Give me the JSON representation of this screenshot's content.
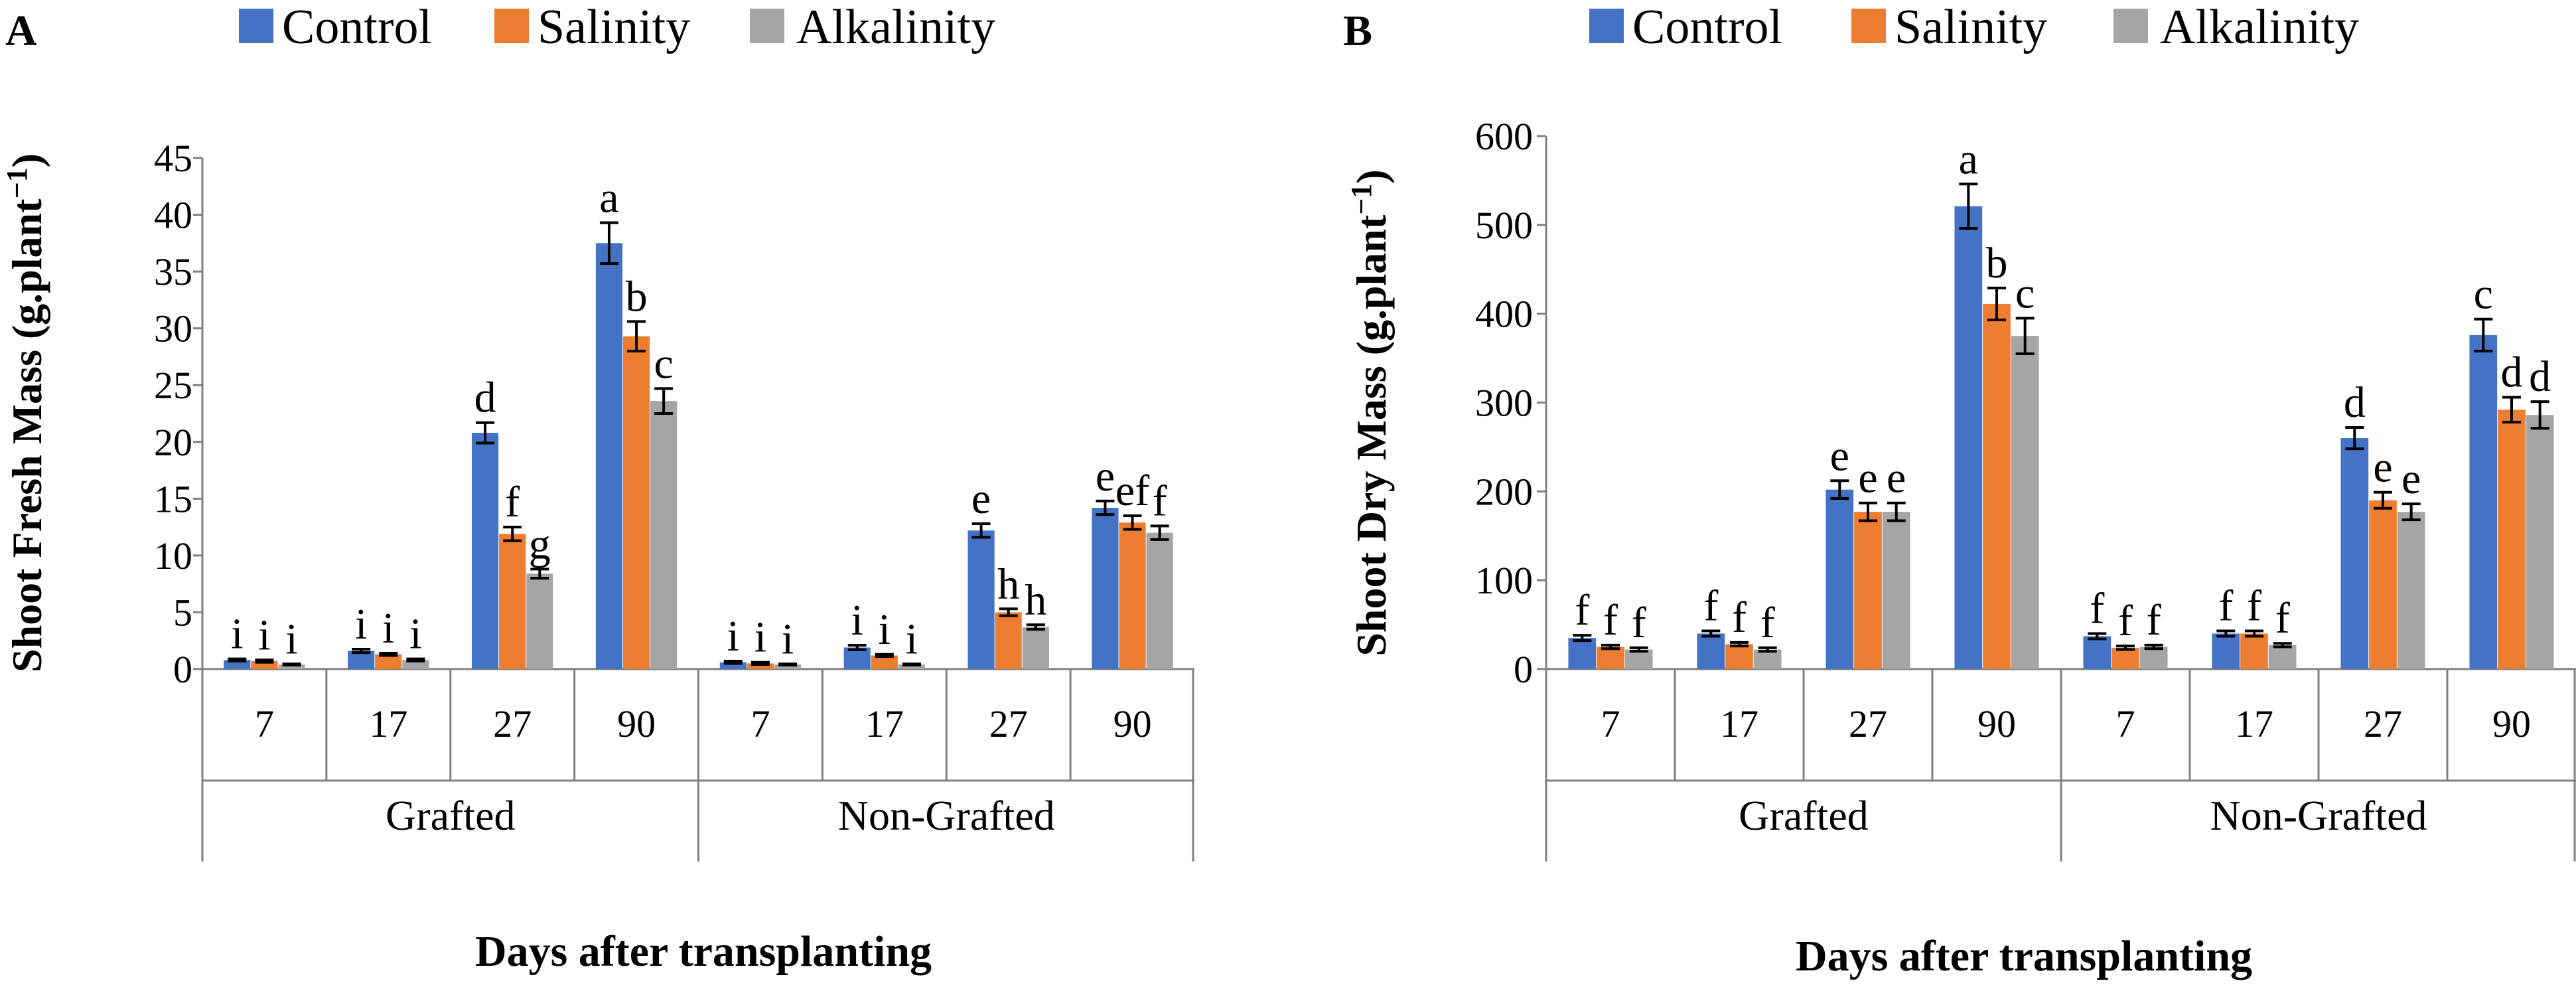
{
  "chart_data": [
    {
      "type": "bar",
      "panel_label": "A",
      "ylabel": "Shoot Fresh  Mass (g.plant",
      "ylabel_exp": "−1",
      "ylabel_close": ")",
      "xlabel": "Days after transplanting",
      "ylim": [
        0,
        45
      ],
      "yticks": [
        0,
        5,
        10,
        15,
        20,
        25,
        30,
        35,
        40,
        45
      ],
      "groups": [
        {
          "name": "Grafted",
          "categories": [
            "7",
            "17",
            "27",
            "90"
          ]
        },
        {
          "name": "Non-Grafted",
          "categories": [
            "7",
            "17",
            "27",
            "90"
          ]
        }
      ],
      "series": [
        {
          "name": "Control",
          "color": "#4472C4",
          "values": [
            0.8,
            1.6,
            20.8,
            37.5,
            0.6,
            1.9,
            12.2,
            14.2
          ],
          "errors": [
            0.1,
            0.15,
            0.9,
            1.8,
            0.1,
            0.2,
            0.6,
            0.6
          ],
          "letters": [
            "i",
            "i",
            "d",
            "a",
            "i",
            "i",
            "e",
            "e"
          ]
        },
        {
          "name": "Salinity",
          "color": "#ED7D31",
          "values": [
            0.7,
            1.3,
            11.9,
            29.3,
            0.5,
            1.2,
            5.0,
            12.9
          ],
          "errors": [
            0.1,
            0.1,
            0.6,
            1.3,
            0.1,
            0.1,
            0.3,
            0.6
          ],
          "letters": [
            "i",
            "i",
            "f",
            "b",
            "i",
            "i",
            "h",
            "ef"
          ]
        },
        {
          "name": "Alkalinity",
          "color": "#A5A5A5",
          "values": [
            0.4,
            0.8,
            8.4,
            23.6,
            0.4,
            0.4,
            3.7,
            12.0
          ],
          "errors": [
            0.05,
            0.1,
            0.4,
            1.1,
            0.05,
            0.05,
            0.2,
            0.6
          ],
          "letters": [
            "i",
            "i",
            "g",
            "c",
            "i",
            "i",
            "h",
            "f"
          ]
        }
      ]
    },
    {
      "type": "bar",
      "panel_label": "B",
      "ylabel": "Shoot Dry Mass (g.plant",
      "ylabel_exp": "−1",
      "ylabel_close": ")",
      "xlabel": "Days after transplanting",
      "ylim": [
        0,
        600
      ],
      "yticks": [
        0,
        100,
        200,
        300,
        400,
        500,
        600
      ],
      "groups": [
        {
          "name": "Grafted",
          "categories": [
            "7",
            "17",
            "27",
            "90"
          ]
        },
        {
          "name": "Non-Grafted",
          "categories": [
            "7",
            "17",
            "27",
            "90"
          ]
        }
      ],
      "series": [
        {
          "name": "Control",
          "color": "#4472C4",
          "values": [
            35,
            40,
            202,
            521,
            37,
            40,
            260,
            376
          ],
          "errors": [
            3,
            3,
            10,
            25,
            3,
            3,
            12,
            18
          ],
          "letters": [
            "f",
            "f",
            "e",
            "a",
            "f",
            "f",
            "d",
            "c"
          ]
        },
        {
          "name": "Salinity",
          "color": "#ED7D31",
          "values": [
            25,
            28,
            177,
            411,
            24,
            40,
            190,
            292
          ],
          "errors": [
            2,
            2,
            10,
            18,
            2,
            3,
            9,
            14
          ],
          "letters": [
            "f",
            "f",
            "e",
            "b",
            "f",
            "f",
            "e",
            "d"
          ]
        },
        {
          "name": "Alkalinity",
          "color": "#A5A5A5",
          "values": [
            22,
            22,
            177,
            375,
            25,
            27,
            177,
            286
          ],
          "errors": [
            2,
            2,
            10,
            20,
            2,
            2,
            9,
            15
          ],
          "letters": [
            "f",
            "f",
            "e",
            "c",
            "f",
            "f",
            "e",
            "d"
          ]
        }
      ]
    }
  ]
}
